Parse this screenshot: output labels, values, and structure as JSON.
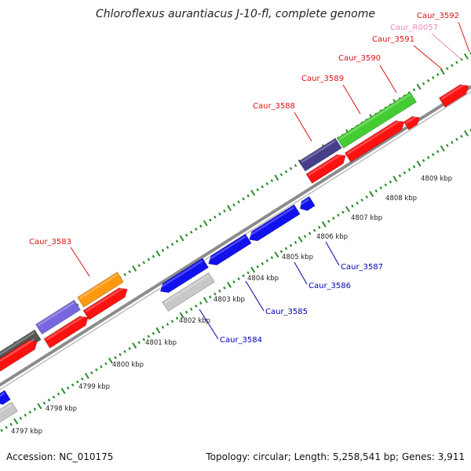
{
  "title": "Chloroflexus aurantiacus J-10-fl, complete genome",
  "footer": {
    "accession": "Accession: NC_010175",
    "summary": "Topology: circular; Length: 5,258,541 bp; Genes: 3,911"
  },
  "colors": {
    "backbone": "#8c8c8c",
    "tick": "#2e8b2e",
    "forward_label": "#dd1111",
    "reverse_label": "#0000aa",
    "rna_label": "#ee88bb"
  },
  "scale_labels": [
    "4797 kbp",
    "4798 kbp",
    "4799 kbp",
    "4800 kbp",
    "4801 kbp",
    "4802 kbp",
    "4803 kbp",
    "4804 kbp",
    "4805 kbp",
    "4806 kbp",
    "4807 kbp",
    "4808 kbp",
    "4809 kbp"
  ],
  "gene_labels": {
    "forward": [
      "Caur_3583",
      "Caur_3588",
      "Caur_3589",
      "Caur_3590",
      "Caur_3591",
      "Caur_3592"
    ],
    "rna": [
      "Caur_R0057"
    ],
    "reverse": [
      "Caur_3584",
      "Caur_3585",
      "Caur_3586",
      "Caur_3587"
    ]
  },
  "features": {
    "cog_forward": [
      {
        "color": "#555555"
      },
      {
        "color": "#7766dd"
      },
      {
        "color": "#ff9911"
      },
      {
        "color": "#443f88"
      },
      {
        "color": "#44cc33"
      }
    ],
    "cds_forward": [
      {
        "color": "#ff1111"
      },
      {
        "color": "#ff1111"
      },
      {
        "color": "#ff1111"
      },
      {
        "color": "#ff1111"
      },
      {
        "color": "#ff1111"
      },
      {
        "color": "#ff1111"
      }
    ],
    "cds_reverse": [
      {
        "color": "#1111ee"
      },
      {
        "color": "#1111ee"
      },
      {
        "color": "#1111ee"
      },
      {
        "color": "#1111ee"
      },
      {
        "color": "#1111ee"
      }
    ],
    "cog_reverse": [
      {
        "color": "#c8c8c8"
      },
      {
        "color": "#c8c8c8"
      }
    ]
  }
}
